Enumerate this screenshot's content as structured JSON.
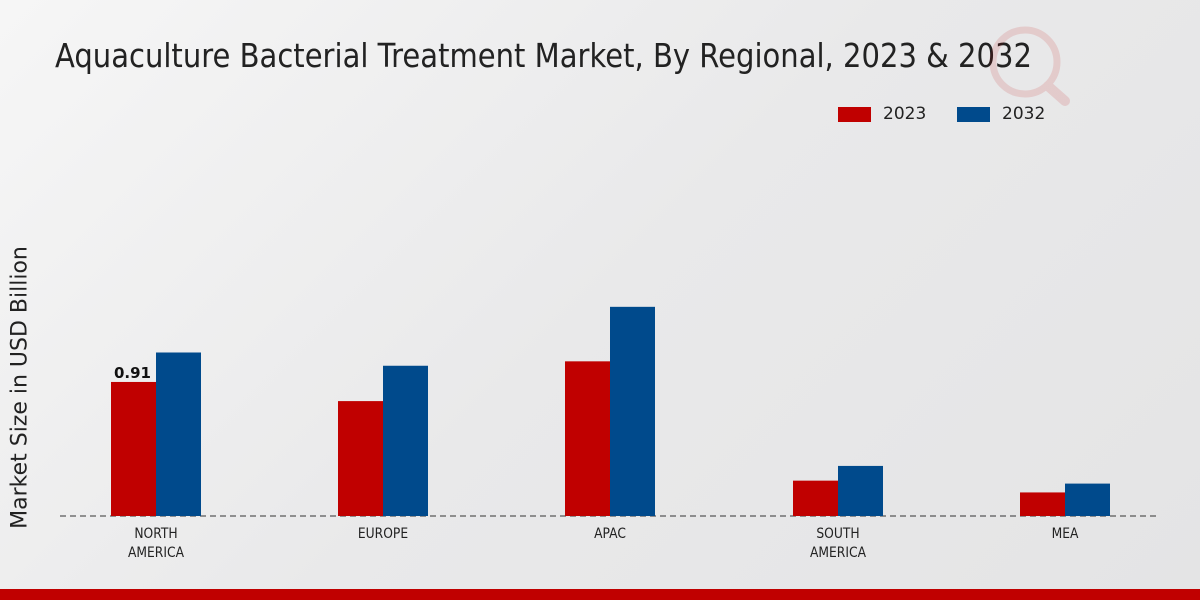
{
  "chart_data": {
    "type": "bar",
    "title": "Aquaculture Bacterial Treatment Market, By Regional, 2023 & 2032",
    "xlabel": "",
    "ylabel": "Market Size in USD Billion",
    "categories": [
      "NORTH AMERICA",
      "EUROPE",
      "APAC",
      "SOUTH AMERICA",
      "MEA"
    ],
    "series": [
      {
        "name": "2023",
        "color": "#c00000",
        "values": [
          0.91,
          0.78,
          1.05,
          0.24,
          0.16
        ]
      },
      {
        "name": "2032",
        "color": "#004a8c",
        "values": [
          1.11,
          1.02,
          1.42,
          0.34,
          0.22
        ]
      }
    ],
    "data_labels": [
      {
        "category": "NORTH AMERICA",
        "series": "2023",
        "text": "0.91"
      }
    ],
    "ylim": [
      0,
      2.0
    ],
    "grid": false,
    "legend_position": "top-right"
  }
}
